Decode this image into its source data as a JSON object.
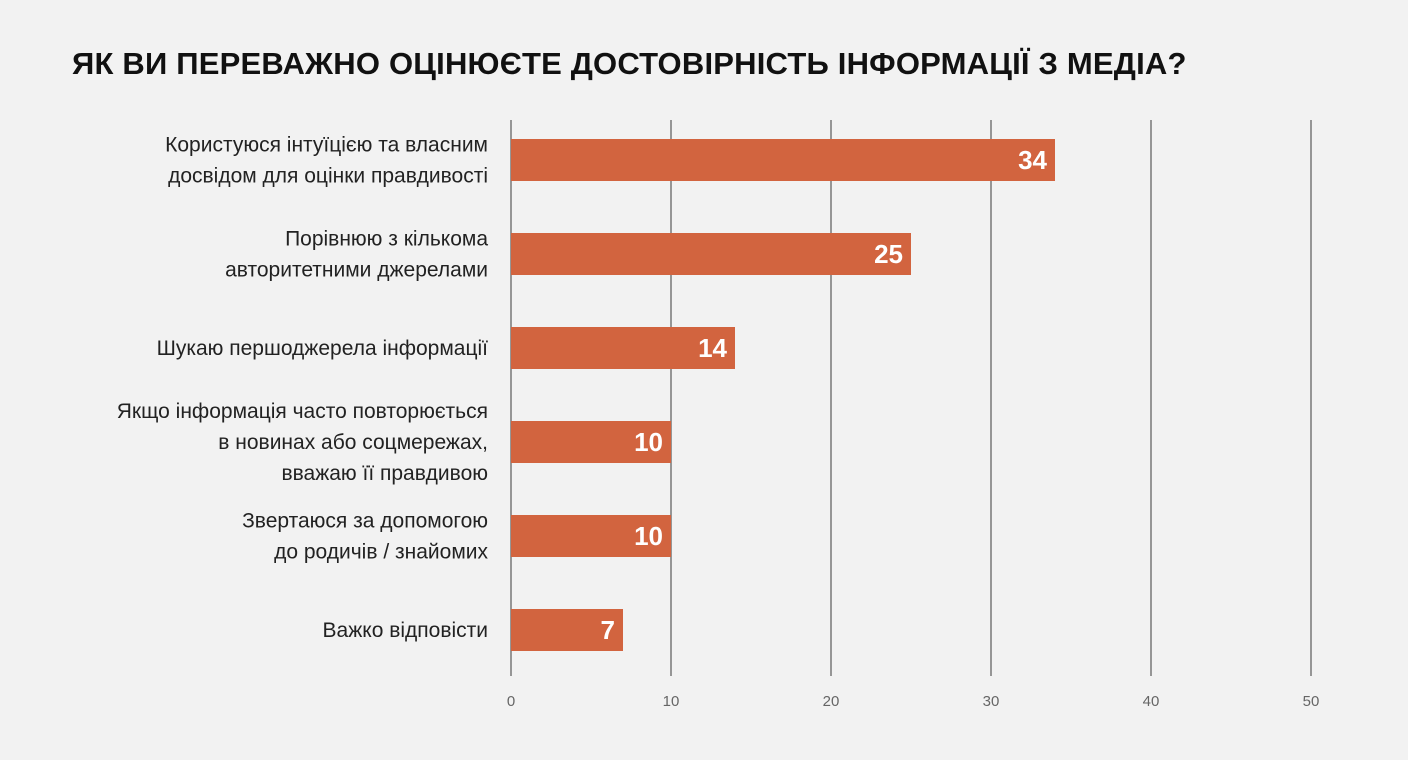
{
  "chart_data": {
    "type": "bar",
    "orientation": "horizontal",
    "title": "ЯК ВИ ПЕРЕВАЖНО ОЦІНЮЄТЕ ДОСТОВІРНІСТЬ ІНФОРМАЦІЇ З МЕДІА?",
    "categories": [
      [
        "Користуюся інтуїцією та власним",
        "досвідом для оцінки правдивості"
      ],
      [
        "Порівнюю з кількома",
        "авторитетними джерелами"
      ],
      [
        "Шукаю першоджерела інформації"
      ],
      [
        "Якщо інформація часто повторюється",
        "в новинах або соцмережах,",
        "вважаю її правдивою"
      ],
      [
        "Звертаюся за допомогою",
        "до родичів / знайомих"
      ],
      [
        "Важко відповісти"
      ]
    ],
    "values": [
      34,
      25,
      14,
      10,
      10,
      7
    ],
    "xlim": [
      0,
      50
    ],
    "ticks": [
      "0",
      "10",
      "20",
      "30",
      "40",
      "50"
    ],
    "grid": true,
    "bar_color": "#d2643f",
    "gridline_color": "#3a3a3a"
  }
}
